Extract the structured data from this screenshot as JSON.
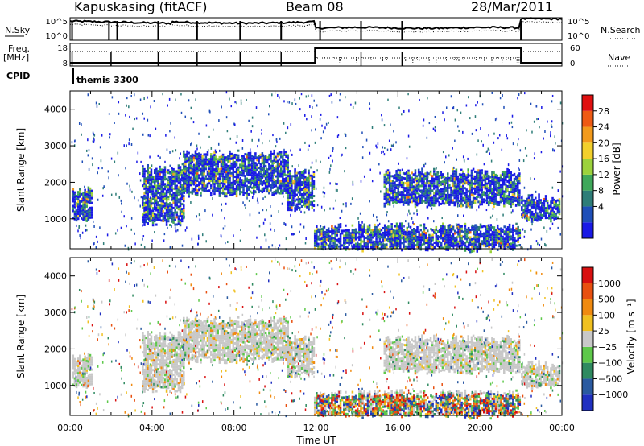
{
  "header": {
    "station": "Kapuskasing (fitACF)",
    "beam": "Beam 08",
    "date": "28/Mar/2011"
  },
  "top_panels": {
    "nsky_label": "N.Sky",
    "nsky_ticks": [
      "10^5",
      "10^0"
    ],
    "nsearch_label": "N.Search",
    "freq_label_1": "Freq.",
    "freq_label_2": "[MHz]",
    "freq_ticks": [
      "18",
      "8"
    ],
    "nave_ticks": [
      "60",
      "0"
    ],
    "nave_label": "Nave",
    "cpid_label": "CPID",
    "cpid_value": "themis 3300"
  },
  "chart_data": [
    {
      "type": "heatmap",
      "name": "power",
      "ylabel": "Slant Range [km]",
      "xlabel": "Time UT",
      "x_ticks": [
        "00:00",
        "04:00",
        "08:00",
        "12:00",
        "16:00",
        "20:00",
        "00:00"
      ],
      "xlim_hours": [
        0,
        24
      ],
      "y_ticks": [
        1000,
        2000,
        3000,
        4000
      ],
      "ylim_km": [
        180,
        4500
      ],
      "colorbar": {
        "label": "Power [dB]",
        "ticks": [
          "28",
          "24",
          "20",
          "16",
          "12",
          "8",
          "4"
        ],
        "colors": [
          "#1a1ae6",
          "#1f4fb8",
          "#2e7d78",
          "#3fa85a",
          "#9cd23c",
          "#f2d02c",
          "#f29a1c",
          "#ee5a14",
          "#e01010"
        ]
      },
      "echo_regions": [
        {
          "t0": 0.1,
          "t1": 1.1,
          "r0": 1000,
          "r1": 1800
        },
        {
          "t0": 3.5,
          "t1": 5.5,
          "r0": 900,
          "r1": 2400
        },
        {
          "t0": 5.5,
          "t1": 10.6,
          "r0": 1700,
          "r1": 2800
        },
        {
          "t0": 10.6,
          "t1": 11.9,
          "r0": 1300,
          "r1": 2300
        },
        {
          "t0": 11.9,
          "t1": 21.9,
          "r0": 200,
          "r1": 800
        },
        {
          "t0": 15.3,
          "t1": 21.9,
          "r0": 1400,
          "r1": 2300
        },
        {
          "t0": 22.0,
          "t1": 23.9,
          "r0": 1000,
          "r1": 1600
        }
      ]
    },
    {
      "type": "heatmap",
      "name": "velocity",
      "ylabel": "Slant Range [km]",
      "xlabel": "Time UT",
      "x_ticks": [
        "00:00",
        "04:00",
        "08:00",
        "12:00",
        "16:00",
        "20:00",
        "00:00"
      ],
      "xlim_hours": [
        0,
        24
      ],
      "y_ticks": [
        1000,
        2000,
        3000,
        4000
      ],
      "ylim_km": [
        180,
        4500
      ],
      "colorbar": {
        "label": "Velocity [m s⁻¹]",
        "ticks": [
          "1000",
          "500",
          "100",
          "25",
          "−25",
          "−100",
          "−500",
          "−1000"
        ],
        "colors": [
          "#2030c0",
          "#2a5aa0",
          "#2f8a60",
          "#5ec84a",
          "#c8c8c8",
          "#f0c020",
          "#f08a10",
          "#e85010",
          "#d81010"
        ]
      }
    }
  ]
}
